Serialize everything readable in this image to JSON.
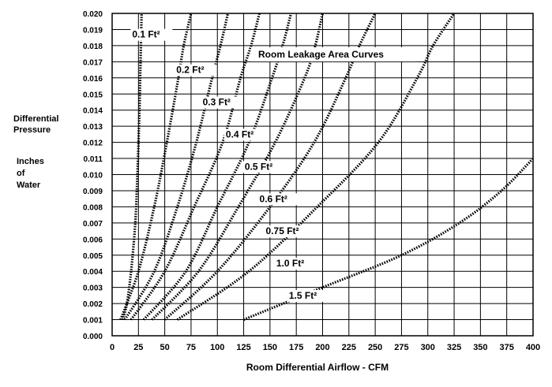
{
  "chart_data": {
    "type": "line",
    "title": "Room Leakage Area Curves",
    "xlabel": "Room Differential Airflow - CFM",
    "ylabel_lines": [
      "Differential",
      "Pressure",
      "",
      "Inches",
      "of",
      "Water"
    ],
    "xlim": [
      0,
      400
    ],
    "ylim": [
      0,
      0.02
    ],
    "x_ticks": [
      0,
      25,
      50,
      75,
      100,
      125,
      150,
      175,
      200,
      225,
      250,
      275,
      300,
      325,
      350,
      375,
      400
    ],
    "y_ticks": [
      0.0,
      0.001,
      0.002,
      0.003,
      0.004,
      0.005,
      0.006,
      0.007,
      0.008,
      0.009,
      0.01,
      0.011,
      0.012,
      0.013,
      0.014,
      0.015,
      0.016,
      0.017,
      0.018,
      0.019,
      0.02
    ],
    "y_tick_labels": [
      "0.000",
      "0.001",
      "0.002",
      "0.003",
      "0.004",
      "0.005",
      "0.006",
      "0.007",
      "0.008",
      "0.009",
      "0.010",
      "0.011",
      "0.012",
      "0.013",
      "0.014",
      "0.015",
      "0.016",
      "0.017",
      "0.018",
      "0.019",
      "0.020"
    ],
    "grid": true,
    "line_style": "dotted",
    "series": [
      {
        "name": "0.1 Ft²",
        "label_at": [
          19,
          0.0185
        ],
        "points": [
          [
            10,
            0.001
          ],
          [
            14,
            0.002
          ],
          [
            18,
            0.004
          ],
          [
            22,
            0.007
          ],
          [
            24,
            0.01
          ],
          [
            26,
            0.014
          ],
          [
            27,
            0.017
          ],
          [
            28,
            0.02
          ]
        ]
      },
      {
        "name": "0.2 Ft²",
        "label_at": [
          61,
          0.0163
        ],
        "points": [
          [
            8,
            0.001
          ],
          [
            25,
            0.004
          ],
          [
            40,
            0.008
          ],
          [
            52,
            0.012
          ],
          [
            63,
            0.016
          ],
          [
            68,
            0.018
          ],
          [
            75,
            0.02
          ]
        ]
      },
      {
        "name": "0.3 Ft²",
        "label_at": [
          86,
          0.0143
        ],
        "points": [
          [
            12,
            0.001
          ],
          [
            40,
            0.004
          ],
          [
            62,
            0.008
          ],
          [
            80,
            0.012
          ],
          [
            95,
            0.016
          ],
          [
            103,
            0.018
          ],
          [
            110,
            0.02
          ]
        ]
      },
      {
        "name": "0.4 Ft²",
        "label_at": [
          108,
          0.0123
        ],
        "points": [
          [
            18,
            0.001
          ],
          [
            50,
            0.004
          ],
          [
            78,
            0.008
          ],
          [
            105,
            0.012
          ],
          [
            122,
            0.016
          ],
          [
            132,
            0.018
          ],
          [
            140,
            0.02
          ]
        ]
      },
      {
        "name": "0.5 Ft²",
        "label_at": [
          126,
          0.0103
        ],
        "points": [
          [
            30,
            0.001
          ],
          [
            70,
            0.004
          ],
          [
            100,
            0.008
          ],
          [
            130,
            0.012
          ],
          [
            152,
            0.016
          ],
          [
            162,
            0.018
          ],
          [
            170,
            0.02
          ]
        ]
      },
      {
        "name": "0.6 Ft²",
        "label_at": [
          140,
          0.0083
        ],
        "points": [
          [
            38,
            0.001
          ],
          [
            82,
            0.004
          ],
          [
            120,
            0.008
          ],
          [
            155,
            0.012
          ],
          [
            183,
            0.016
          ],
          [
            193,
            0.018
          ],
          [
            200,
            0.02
          ]
        ]
      },
      {
        "name": "0.75 Ft²",
        "label_at": [
          146,
          0.0063
        ],
        "points": [
          [
            50,
            0.001
          ],
          [
            100,
            0.004
          ],
          [
            150,
            0.008
          ],
          [
            192,
            0.012
          ],
          [
            222,
            0.016
          ],
          [
            235,
            0.018
          ],
          [
            250,
            0.02
          ]
        ]
      },
      {
        "name": "1.0 Ft²",
        "label_at": [
          156,
          0.0043
        ],
        "points": [
          [
            62,
            0.001
          ],
          [
            130,
            0.004
          ],
          [
            195,
            0.008
          ],
          [
            253,
            0.012
          ],
          [
            290,
            0.016
          ],
          [
            305,
            0.018
          ],
          [
            325,
            0.02
          ]
        ]
      },
      {
        "name": "1.5 Ft²",
        "label_at": [
          168,
          0.0023
        ],
        "points": [
          [
            125,
            0.001
          ],
          [
            200,
            0.003
          ],
          [
            275,
            0.005
          ],
          [
            330,
            0.007
          ],
          [
            370,
            0.009
          ],
          [
            400,
            0.011
          ]
        ]
      }
    ]
  }
}
